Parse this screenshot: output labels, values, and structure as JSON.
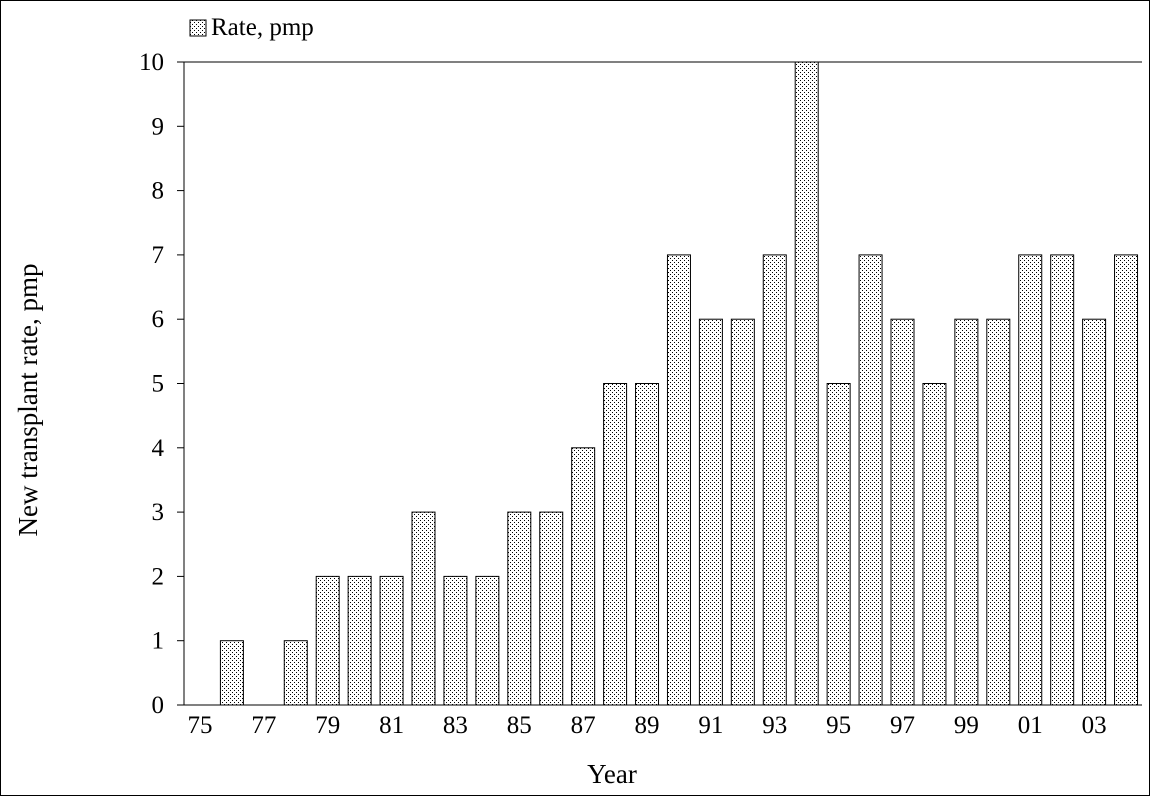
{
  "chart_data": {
    "type": "bar",
    "title": "",
    "xlabel": "Year",
    "ylabel": "New transplant rate, pmp",
    "ylim": [
      0,
      10
    ],
    "yticks": [
      "0",
      "1",
      "2",
      "3",
      "4",
      "5",
      "6",
      "7",
      "8",
      "9",
      "10"
    ],
    "categories": [
      "75",
      "76",
      "77",
      "78",
      "79",
      "80",
      "81",
      "82",
      "83",
      "84",
      "85",
      "86",
      "87",
      "88",
      "89",
      "90",
      "91",
      "92",
      "93",
      "94",
      "95",
      "96",
      "97",
      "98",
      "99",
      "00",
      "01",
      "02",
      "03",
      "04"
    ],
    "xtick_labels": [
      "75",
      "77",
      "79",
      "81",
      "83",
      "85",
      "87",
      "89",
      "91",
      "93",
      "95",
      "97",
      "99",
      "01",
      "03"
    ],
    "series": [
      {
        "name": "Rate, pmp",
        "values": [
          0,
          1,
          0,
          1,
          2,
          2,
          2,
          3,
          2,
          2,
          3,
          3,
          4,
          5,
          5,
          7,
          6,
          6,
          7,
          10,
          5,
          7,
          6,
          5,
          6,
          6,
          7,
          7,
          6,
          7
        ]
      }
    ],
    "legend_position": "top-left",
    "grid": false,
    "bar_fill": "dotted pattern"
  }
}
